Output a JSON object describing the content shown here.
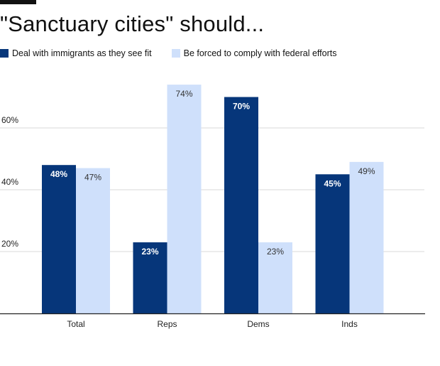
{
  "colors": {
    "series1": "#06367a",
    "series2": "#cfe0fb",
    "axis": "#222222",
    "grid": "#d9d9d9",
    "label_dark": "#ffffff",
    "label_light": "#333333",
    "title": "#111111"
  },
  "chart_data": {
    "type": "bar",
    "title": "\"Sanctuary cities\" should...",
    "categories": [
      "Total",
      "Reps",
      "Dems",
      "Inds"
    ],
    "series": [
      {
        "name": "Deal with immigrants as they see fit",
        "values": [
          48,
          23,
          70,
          45
        ]
      },
      {
        "name": "Be forced to comply with federal efforts",
        "values": [
          47,
          74,
          23,
          49
        ]
      }
    ],
    "ylim": [
      0,
      80
    ],
    "yticks": [
      20,
      40,
      60
    ],
    "ytick_labels": [
      "20%",
      "40%",
      "60%"
    ],
    "data_labels": [
      [
        "48%",
        "23%",
        "70%",
        "45%"
      ],
      [
        "47%",
        "74%",
        "23%",
        "49%"
      ]
    ],
    "grid": true,
    "legend_position": "top-left",
    "xlabel": "",
    "ylabel": ""
  }
}
